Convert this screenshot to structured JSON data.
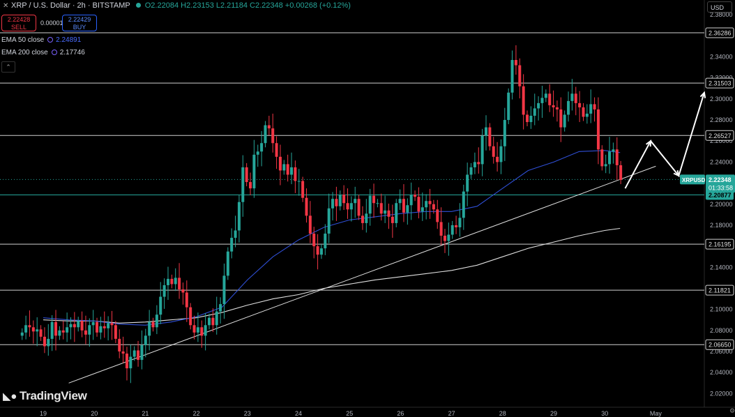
{
  "header": {
    "symbol": "XRP / U.S. Dollar · 2h · BITSTAMP",
    "ohlc": "O2.22084  H2.23153  L2.21184  C2.22348  +0.00268 (+0.12%)"
  },
  "trade": {
    "sell_price": "2.22428",
    "sell_label": "SELL",
    "spread": "0.00001",
    "buy_price": "2.22429",
    "buy_label": "BUY"
  },
  "indicators": {
    "ema50_label": "EMA 50 close",
    "ema50_value": "2.24891",
    "ema200_label": "EMA 200 close",
    "ema200_value": "2.17746"
  },
  "currency": "USD",
  "branding": "TradingView",
  "colors": {
    "up": "#26a69a",
    "down": "#f23645",
    "ema50": "#2f4fd6",
    "ema200": "#e0e0e0",
    "current": "#26a69a"
  },
  "chart_data": {
    "type": "candlestick",
    "y_ticks": [
      "2.02000",
      "2.04000",
      "2.06000",
      "2.08000",
      "2.10000",
      "2.12000",
      "2.14000",
      "2.16000",
      "2.18000",
      "2.20000",
      "2.22000",
      "2.24000",
      "2.26000",
      "2.28000",
      "2.30000",
      "2.32000",
      "2.34000",
      "2.36000",
      "2.38000"
    ],
    "ylim": [
      2.007,
      2.394
    ],
    "x_ticks": [
      {
        "label": "19",
        "day": 19
      },
      {
        "label": "20",
        "day": 20
      },
      {
        "label": "21",
        "day": 21
      },
      {
        "label": "22",
        "day": 22
      },
      {
        "label": "23",
        "day": 23
      },
      {
        "label": "24",
        "day": 24
      },
      {
        "label": "25",
        "day": 25
      },
      {
        "label": "26",
        "day": 26
      },
      {
        "label": "27",
        "day": 27
      },
      {
        "label": "28",
        "day": 28
      },
      {
        "label": "29",
        "day": 29
      },
      {
        "label": "30",
        "day": 30
      },
      {
        "label": "May",
        "day": 31
      }
    ],
    "levels": [
      {
        "value": 2.36286,
        "label": "2.36286"
      },
      {
        "value": 2.31503,
        "label": "2.31503"
      },
      {
        "value": 2.26527,
        "label": "2.26527"
      },
      {
        "value": 2.16195,
        "label": "2.16195"
      },
      {
        "value": 2.11821,
        "label": "2.11821"
      },
      {
        "value": 2.0665,
        "label": "2.06650"
      }
    ],
    "green_level": {
      "value": 2.20877,
      "label": "2.20877"
    },
    "current": {
      "value": 2.22348,
      "symbol": "XRPUSD",
      "price": "2.22348",
      "countdown": "01:33:58"
    },
    "closes": [
      2.078,
      2.085,
      2.083,
      2.079,
      2.081,
      2.074,
      2.065,
      2.072,
      2.088,
      2.075,
      2.08,
      2.078,
      2.083,
      2.086,
      2.083,
      2.089,
      2.08,
      2.076,
      2.085,
      2.088,
      2.078,
      2.084,
      2.082,
      2.087,
      2.085,
      2.072,
      2.06,
      2.058,
      2.044,
      2.055,
      2.061,
      2.052,
      2.066,
      2.075,
      2.088,
      2.083,
      2.095,
      2.112,
      2.123,
      2.129,
      2.124,
      2.13,
      2.119,
      2.116,
      2.102,
      2.085,
      2.078,
      2.083,
      2.075,
      2.085,
      2.092,
      2.085,
      2.098,
      2.105,
      2.132,
      2.155,
      2.168,
      2.175,
      2.202,
      2.235,
      2.221,
      2.215,
      2.247,
      2.25,
      2.258,
      2.275,
      2.272,
      2.258,
      2.245,
      2.232,
      2.238,
      2.228,
      2.235,
      2.222,
      2.222,
      2.206,
      2.189,
      2.172,
      2.16,
      2.152,
      2.158,
      2.172,
      2.196,
      2.205,
      2.198,
      2.209,
      2.201,
      2.195,
      2.201,
      2.205,
      2.189,
      2.182,
      2.191,
      2.208,
      2.201,
      2.201,
      2.191,
      2.194,
      2.188,
      2.182,
      2.201,
      2.205,
      2.192,
      2.199,
      2.209,
      2.207,
      2.193,
      2.197,
      2.203,
      2.2,
      2.195,
      2.183,
      2.17,
      2.165,
      2.171,
      2.18,
      2.178,
      2.187,
      2.212,
      2.228,
      2.235,
      2.24,
      2.238,
      2.265,
      2.273,
      2.255,
      2.245,
      2.24,
      2.255,
      2.28,
      2.306,
      2.337,
      2.332,
      2.312,
      2.285,
      2.278,
      2.284,
      2.291,
      2.296,
      2.301,
      2.305,
      2.294,
      2.292,
      2.29,
      2.273,
      2.285,
      2.298,
      2.305,
      2.296,
      2.292,
      2.283,
      2.286,
      2.295,
      2.29,
      2.252,
      2.236,
      2.238,
      2.25,
      2.252,
      2.237,
      2.223
    ],
    "first_open": 2.075,
    "ema50": [
      [
        19.0,
        2.092
      ],
      [
        19.5,
        2.09
      ],
      [
        20.0,
        2.089
      ],
      [
        20.5,
        2.086
      ],
      [
        21.0,
        2.085
      ],
      [
        21.5,
        2.088
      ],
      [
        22.0,
        2.093
      ],
      [
        22.5,
        2.102
      ],
      [
        23.0,
        2.128
      ],
      [
        23.5,
        2.15
      ],
      [
        24.0,
        2.166
      ],
      [
        24.5,
        2.178
      ],
      [
        25.0,
        2.185
      ],
      [
        25.5,
        2.188
      ],
      [
        26.0,
        2.191
      ],
      [
        26.5,
        2.193
      ],
      [
        27.0,
        2.193
      ],
      [
        27.5,
        2.198
      ],
      [
        28.0,
        2.215
      ],
      [
        28.5,
        2.232
      ],
      [
        29.0,
        2.24
      ],
      [
        29.5,
        2.25
      ],
      [
        30.0,
        2.251
      ],
      [
        30.3,
        2.249
      ]
    ],
    "ema200": [
      [
        19.0,
        2.09
      ],
      [
        19.5,
        2.089
      ],
      [
        20.0,
        2.089
      ],
      [
        20.5,
        2.087
      ],
      [
        21.0,
        2.088
      ],
      [
        21.5,
        2.09
      ],
      [
        22.0,
        2.092
      ],
      [
        22.5,
        2.097
      ],
      [
        23.0,
        2.104
      ],
      [
        23.5,
        2.11
      ],
      [
        24.0,
        2.114
      ],
      [
        24.5,
        2.12
      ],
      [
        25.0,
        2.124
      ],
      [
        25.5,
        2.128
      ],
      [
        26.0,
        2.131
      ],
      [
        26.5,
        2.134
      ],
      [
        27.0,
        2.137
      ],
      [
        27.5,
        2.142
      ],
      [
        28.0,
        2.15
      ],
      [
        28.5,
        2.158
      ],
      [
        29.0,
        2.164
      ],
      [
        29.5,
        2.17
      ],
      [
        30.0,
        2.175
      ],
      [
        30.3,
        2.177
      ]
    ],
    "trendline": [
      [
        19.5,
        2.03
      ],
      [
        31.0,
        2.236
      ]
    ],
    "projection": [
      [
        30.4,
        2.215
      ],
      [
        30.9,
        2.26
      ],
      [
        31.45,
        2.227
      ],
      [
        31.95,
        2.306
      ]
    ]
  }
}
